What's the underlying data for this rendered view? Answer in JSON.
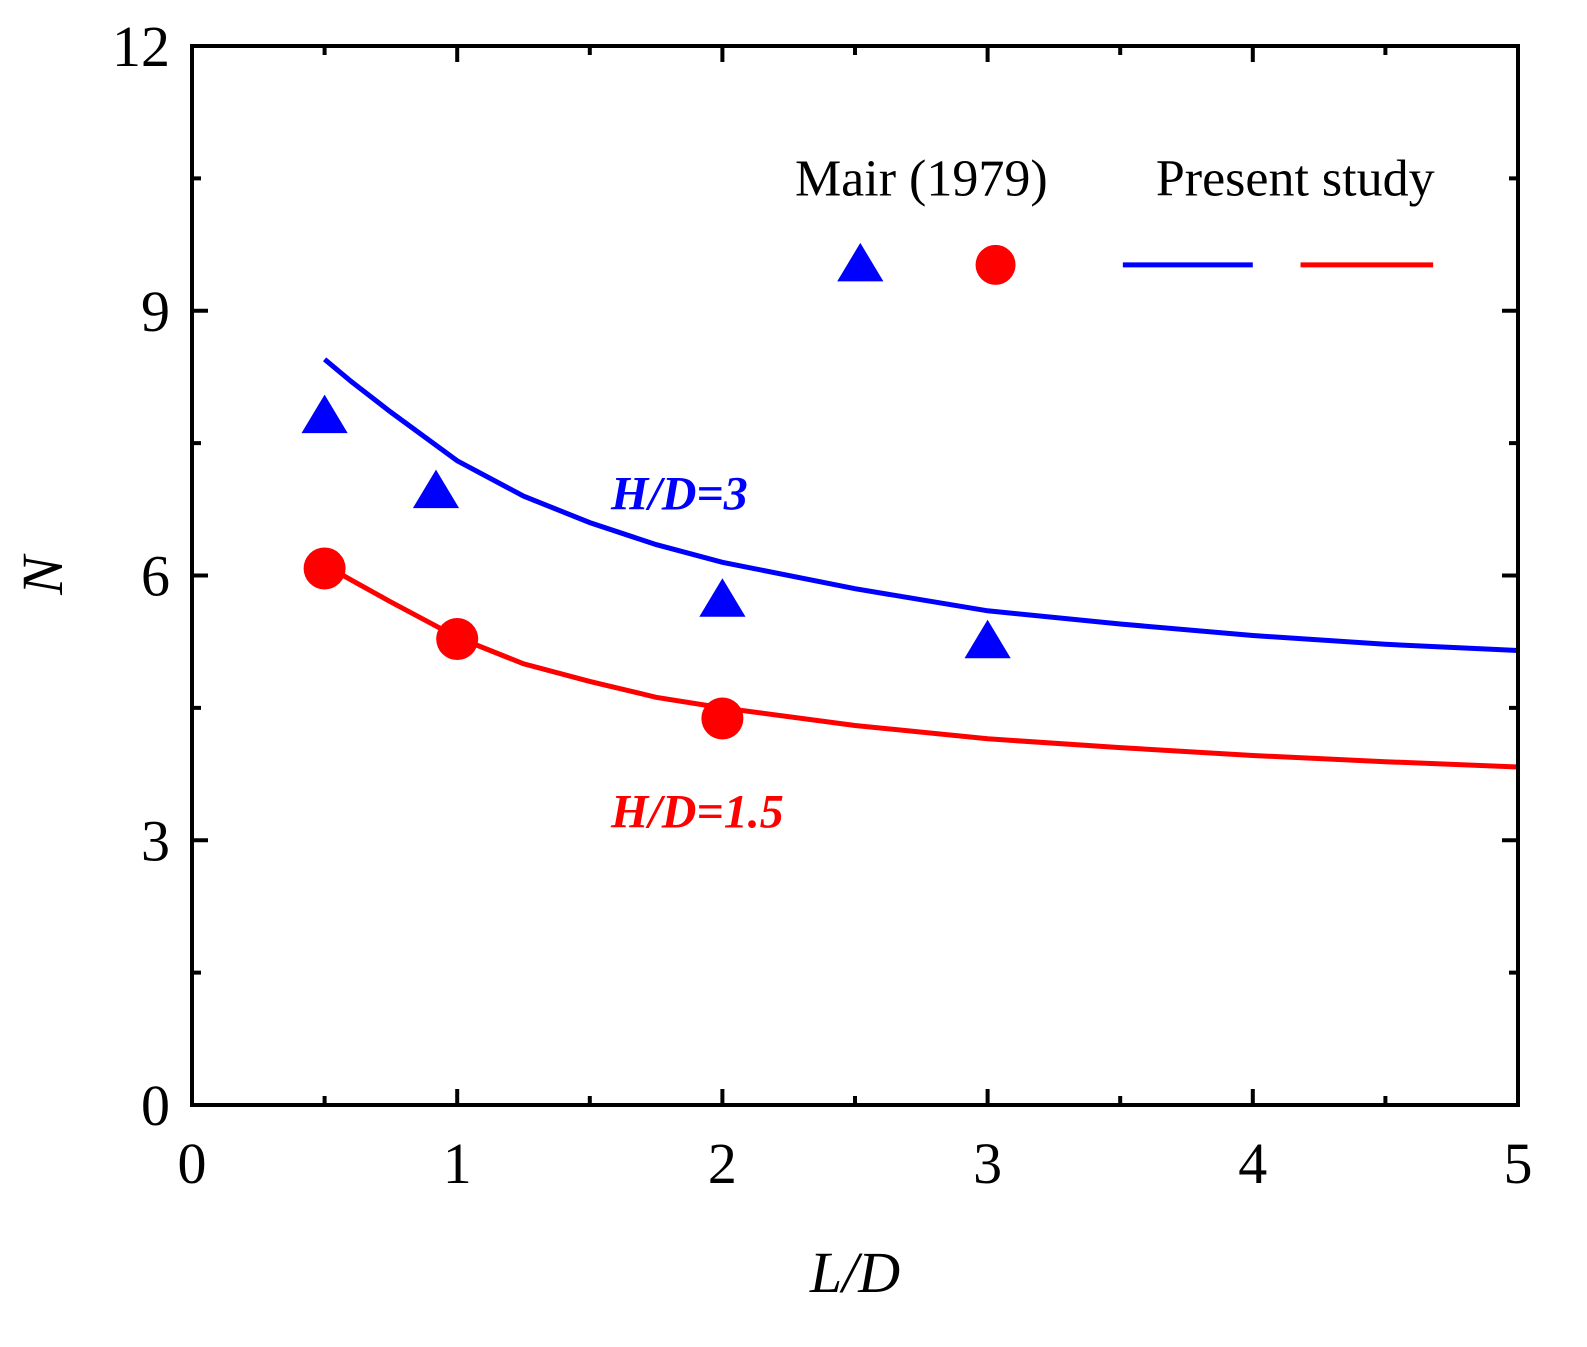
{
  "chart_data": {
    "type": "line",
    "xlabel": "L/D",
    "ylabel": "N",
    "xlim": [
      0,
      5
    ],
    "ylim": [
      0,
      12
    ],
    "x_ticks": [
      "0",
      "1",
      "2",
      "3",
      "4",
      "5"
    ],
    "y_ticks": [
      "0",
      "3",
      "6",
      "9",
      "12"
    ],
    "x_minor_step": 0.5,
    "y_minor_step": 1.5,
    "legend": {
      "placement": "top-right",
      "label_data": "Mair (1979)",
      "label_model": "Present study"
    },
    "series": [
      {
        "name": "H/D=3",
        "color": "#0000ff",
        "marker": "triangle",
        "points": [
          [
            0.5,
            7.8
          ],
          [
            0.92,
            6.95
          ],
          [
            2.0,
            5.72
          ],
          [
            3.0,
            5.25
          ]
        ],
        "curve": [
          [
            0.5,
            8.45
          ],
          [
            0.6,
            8.2
          ],
          [
            0.75,
            7.85
          ],
          [
            1.0,
            7.3
          ],
          [
            1.25,
            6.9
          ],
          [
            1.5,
            6.6
          ],
          [
            1.75,
            6.35
          ],
          [
            2.0,
            6.15
          ],
          [
            2.5,
            5.85
          ],
          [
            3.0,
            5.6
          ],
          [
            3.5,
            5.45
          ],
          [
            4.0,
            5.32
          ],
          [
            4.5,
            5.22
          ],
          [
            5.0,
            5.15
          ]
        ]
      },
      {
        "name": "H/D=1.5",
        "color": "#ff0000",
        "marker": "circle",
        "points": [
          [
            0.5,
            6.08
          ],
          [
            1.0,
            5.28
          ],
          [
            2.0,
            4.38
          ]
        ],
        "curve": [
          [
            0.5,
            6.12
          ],
          [
            0.6,
            5.95
          ],
          [
            0.75,
            5.7
          ],
          [
            1.0,
            5.3
          ],
          [
            1.25,
            5.0
          ],
          [
            1.5,
            4.8
          ],
          [
            1.75,
            4.62
          ],
          [
            2.0,
            4.5
          ],
          [
            2.5,
            4.3
          ],
          [
            3.0,
            4.15
          ],
          [
            3.5,
            4.05
          ],
          [
            4.0,
            3.96
          ],
          [
            4.5,
            3.89
          ],
          [
            5.0,
            3.83
          ]
        ]
      }
    ]
  }
}
